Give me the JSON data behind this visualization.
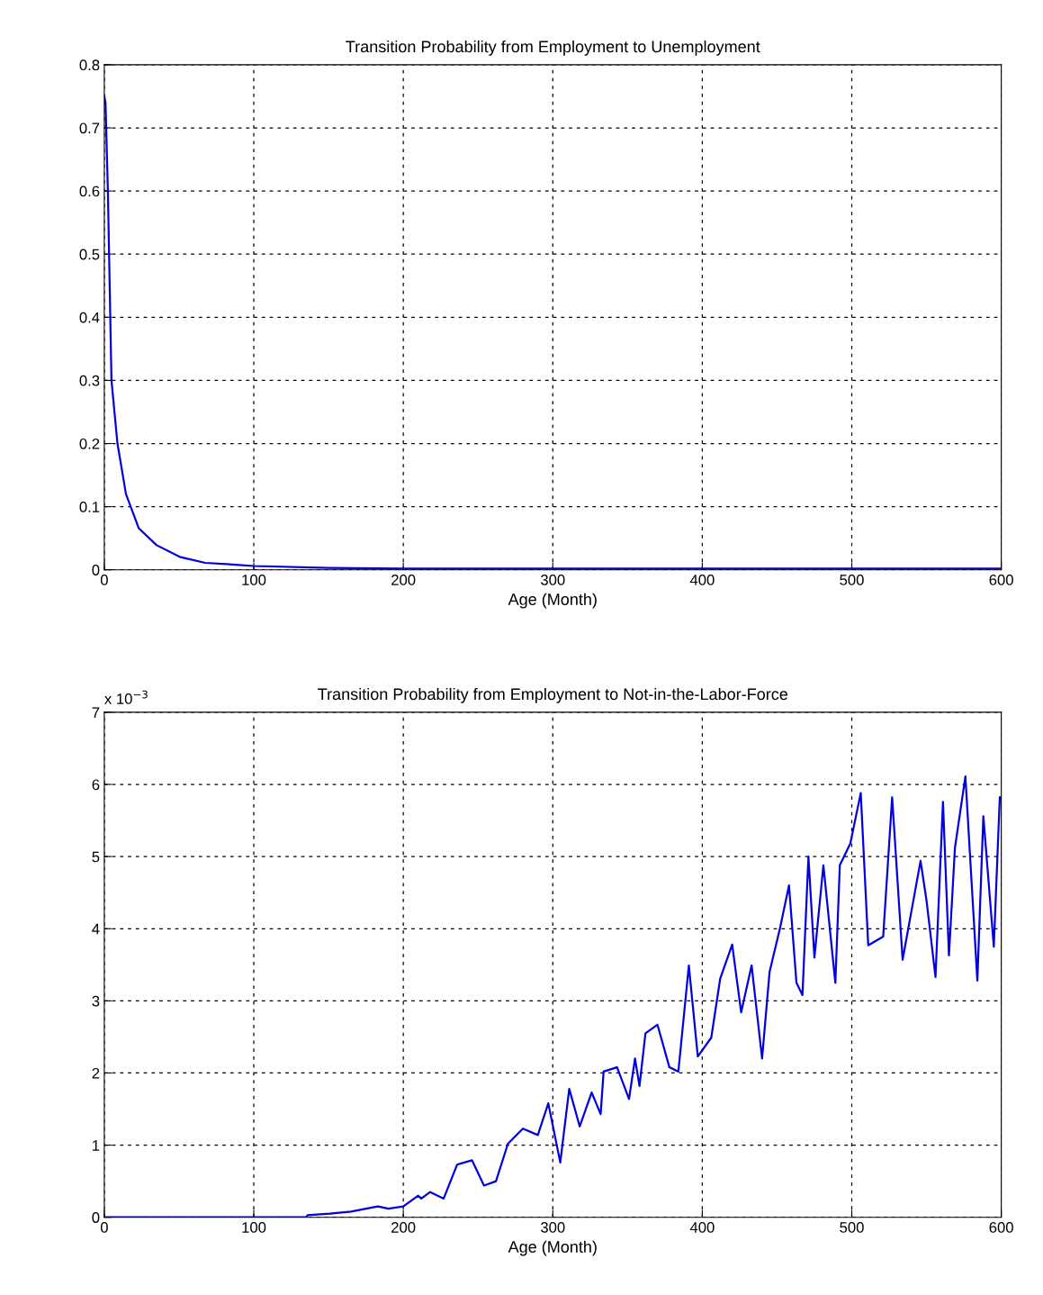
{
  "chart_data": [
    {
      "type": "line",
      "title": "Transition Probability from Employment to Unemployment",
      "xlabel": "Age (Month)",
      "xlim": [
        0,
        600
      ],
      "xticks": [
        0,
        100,
        200,
        300,
        400,
        500,
        600
      ],
      "ylim": [
        0,
        0.8
      ],
      "yticks": [
        0,
        0.1,
        0.2,
        0.3,
        0.4,
        0.5,
        0.6,
        0.7,
        0.8
      ],
      "grid": true,
      "series": [
        {
          "color": "#0000e0",
          "x": [
            0,
            0.8,
            2.4,
            3.2,
            4.8,
            8.8,
            14.5,
            23,
            35,
            51,
            67.5,
            88,
            100,
            150,
            200,
            300,
            400,
            500,
            600
          ],
          "values": [
            0.75,
            0.74,
            0.6,
            0.5,
            0.3,
            0.2,
            0.12,
            0.066,
            0.039,
            0.02,
            0.011,
            0.008,
            0.006,
            0.003,
            0.002,
            0.002,
            0.002,
            0.002,
            0.002
          ]
        }
      ]
    },
    {
      "type": "line",
      "title": "Transition Probability from Employment to Not-in-the-Labor-Force",
      "xlabel": "Age (Month)",
      "xlim": [
        0,
        600
      ],
      "xticks": [
        0,
        100,
        200,
        300,
        400,
        500,
        600
      ],
      "ylim": [
        0,
        7
      ],
      "yticks": [
        0,
        1,
        2,
        3,
        4,
        5,
        6,
        7
      ],
      "grid": true,
      "annotations": [
        "x 10$^{−3}$"
      ],
      "series": [
        {
          "color": "#0000e0",
          "x": [
            0,
            135,
            136,
            151,
            165,
            183,
            190,
            200,
            210,
            212,
            218,
            227,
            236,
            246,
            254,
            262,
            270,
            280,
            290,
            297,
            305,
            311,
            318,
            326,
            332,
            334,
            343,
            351,
            355,
            358,
            362,
            370,
            378,
            384,
            391,
            397,
            406,
            412,
            420,
            426,
            433,
            440,
            445,
            452,
            458,
            463,
            467,
            471,
            475,
            481,
            489,
            492,
            499,
            506,
            511,
            521,
            527,
            534,
            546,
            550,
            556,
            561,
            565,
            569,
            576,
            584,
            588,
            595,
            599
          ],
          "values": [
            0,
            0,
            0.03,
            0.05,
            0.08,
            0.15,
            0.12,
            0.15,
            0.3,
            0.26,
            0.35,
            0.26,
            0.73,
            0.79,
            0.44,
            0.5,
            1.02,
            1.23,
            1.14,
            1.58,
            0.76,
            1.78,
            1.26,
            1.73,
            1.43,
            2.02,
            2.08,
            1.64,
            2.2,
            1.82,
            2.55,
            2.67,
            2.08,
            2.02,
            3.49,
            2.23,
            2.49,
            3.31,
            3.78,
            2.84,
            3.49,
            2.2,
            3.4,
            4.01,
            4.6,
            3.25,
            3.08,
            5.0,
            3.6,
            4.88,
            3.25,
            4.88,
            5.18,
            5.88,
            3.77,
            3.89,
            5.82,
            3.57,
            4.94,
            4.39,
            3.33,
            5.76,
            3.63,
            5.12,
            6.11,
            3.28,
            5.56,
            3.75,
            5.82
          ]
        }
      ]
    }
  ]
}
